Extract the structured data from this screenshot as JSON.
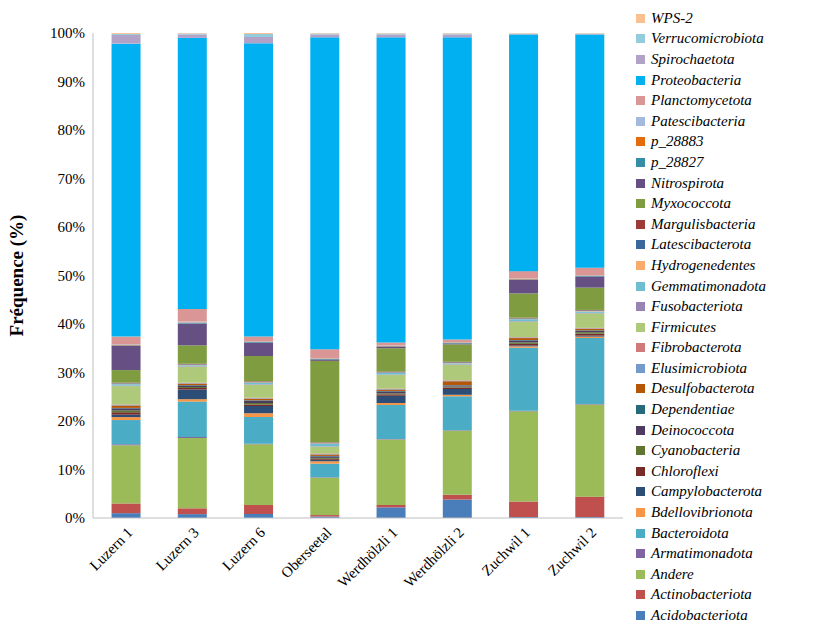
{
  "chart_data": {
    "type": "bar",
    "stacked": true,
    "grid": false,
    "legend": "right",
    "y_label": "Fréquence   (%)",
    "categories": [
      "Luzern 1",
      "Luzern 3",
      "Luzern 6",
      "Oberseetal",
      "Werdhölzli 1",
      "Werdhölzli 2",
      "Zuchwil 1",
      "Zuchwil 2"
    ],
    "ylim": [
      0,
      100
    ],
    "yticks": [
      {
        "value": 0,
        "label": "0%"
      },
      {
        "value": 10,
        "label": "10%"
      },
      {
        "value": 20,
        "label": "20%"
      },
      {
        "value": 30,
        "label": "30%"
      },
      {
        "value": 40,
        "label": "40%"
      },
      {
        "value": 50,
        "label": "50%"
      },
      {
        "value": 60,
        "label": "60%"
      },
      {
        "value": 70,
        "label": "70%"
      },
      {
        "value": 80,
        "label": "80%"
      },
      {
        "value": 90,
        "label": "90%"
      },
      {
        "value": 100,
        "label": "100%"
      }
    ],
    "series": [
      {
        "name": "Acidobacteriota",
        "color": "#4a7ebb",
        "values": [
          1.0,
          0.8,
          0.8,
          0.3,
          2.2,
          3.8,
          0.2,
          0.2
        ]
      },
      {
        "name": "Actinobacteriota",
        "color": "#c0504d",
        "values": [
          2.0,
          1.2,
          1.9,
          0.3,
          0.5,
          1.0,
          3.2,
          4.2
        ]
      },
      {
        "name": "Andere",
        "color": "#9bbb59",
        "values": [
          12.0,
          14.5,
          12.5,
          7.7,
          13.5,
          13.2,
          18.6,
          19.0
        ]
      },
      {
        "name": "Armatimonadota",
        "color": "#8064a2",
        "values": [
          0.2,
          0.2,
          0.1,
          0.1,
          0.1,
          0.1,
          0.1,
          0.1
        ]
      },
      {
        "name": "Bacteroidota",
        "color": "#4bacc6",
        "values": [
          5.0,
          7.3,
          5.5,
          2.8,
          7.0,
          7.0,
          13.0,
          13.6
        ]
      },
      {
        "name": "Bdellovibrionota",
        "color": "#f79646",
        "values": [
          0.6,
          0.5,
          0.8,
          0.5,
          0.4,
          0.3,
          0.3,
          0.3
        ]
      },
      {
        "name": "Campylobacterota",
        "color": "#2c4d75",
        "values": [
          0.5,
          2.0,
          1.5,
          0.3,
          1.5,
          1.2,
          0.2,
          0.2
        ]
      },
      {
        "name": "Chloroflexi",
        "color": "#772c2a",
        "values": [
          0.5,
          0.3,
          0.3,
          0.2,
          0.3,
          0.3,
          0.3,
          0.4
        ]
      },
      {
        "name": "Cyanobacteria",
        "color": "#5f7530",
        "values": [
          0.4,
          0.2,
          0.3,
          0.2,
          0.2,
          0.2,
          0.3,
          0.3
        ]
      },
      {
        "name": "Deinococcota",
        "color": "#4d3b62",
        "values": [
          0.4,
          0.3,
          0.5,
          0.3,
          0.4,
          0.2,
          0.4,
          0.3
        ]
      },
      {
        "name": "Dependentiae",
        "color": "#276a7c",
        "values": [
          0.1,
          0.1,
          0.1,
          0.1,
          0.1,
          0.1,
          0.1,
          0.1
        ]
      },
      {
        "name": "Desulfobacterota",
        "color": "#b65708",
        "values": [
          0.5,
          0.3,
          0.3,
          0.3,
          0.3,
          0.8,
          0.4,
          0.3
        ]
      },
      {
        "name": "Elusimicrobiota",
        "color": "#729aca",
        "values": [
          0.1,
          0.1,
          0.1,
          0.1,
          0.1,
          0.1,
          0.1,
          0.1
        ]
      },
      {
        "name": "Fibrobacterota",
        "color": "#d07b79",
        "values": [
          0.1,
          0.1,
          0.1,
          0.1,
          0.1,
          0.1,
          0.1,
          0.1
        ]
      },
      {
        "name": "Firmicutes",
        "color": "#afc97a",
        "values": [
          3.8,
          3.3,
          2.7,
          1.4,
          2.8,
          3.2,
          3.2,
          3.0
        ]
      },
      {
        "name": "Fusobacteriota",
        "color": "#9983b5",
        "values": [
          0.1,
          0.1,
          0.1,
          0.1,
          0.1,
          0.1,
          0.1,
          0.1
        ]
      },
      {
        "name": "Gemmatimonadota",
        "color": "#6fbdd1",
        "values": [
          0.3,
          0.2,
          0.3,
          0.5,
          0.3,
          0.2,
          0.4,
          0.3
        ]
      },
      {
        "name": "Hydrogenedentes",
        "color": "#f9ab6b",
        "values": [
          0.1,
          0.1,
          0.1,
          0.1,
          0.1,
          0.1,
          0.1,
          0.1
        ]
      },
      {
        "name": "Latescibacterota",
        "color": "#3a679c",
        "values": [
          0.1,
          0.1,
          0.1,
          0.1,
          0.1,
          0.1,
          0.1,
          0.1
        ]
      },
      {
        "name": "Margulisbacteria",
        "color": "#9c3b38",
        "values": [
          0.1,
          0.1,
          0.1,
          0.1,
          0.1,
          0.1,
          0.1,
          0.1
        ]
      },
      {
        "name": "Myxococcota",
        "color": "#7f9c41",
        "values": [
          2.6,
          3.8,
          5.2,
          16.8,
          4.8,
          3.6,
          5.0,
          4.6
        ]
      },
      {
        "name": "Nitrospirota",
        "color": "#664f83",
        "values": [
          5.0,
          4.5,
          2.8,
          0.3,
          0.3,
          0.2,
          2.8,
          2.3
        ]
      },
      {
        "name": "p_28827",
        "color": "#358da6",
        "values": [
          0.1,
          0.1,
          0.1,
          0.1,
          0.1,
          0.1,
          0.1,
          0.1
        ]
      },
      {
        "name": "p_28883",
        "color": "#e46c0a",
        "values": [
          0.1,
          0.1,
          0.1,
          0.1,
          0.1,
          0.1,
          0.1,
          0.1
        ]
      },
      {
        "name": "Patescibacteria",
        "color": "#a5b9dc",
        "values": [
          0.1,
          0.2,
          0.1,
          0.1,
          0.1,
          0.1,
          0.1,
          0.1
        ]
      },
      {
        "name": "Planctomycetota",
        "color": "#d99694",
        "values": [
          1.6,
          2.6,
          0.9,
          1.8,
          0.6,
          0.5,
          1.5,
          1.5
        ]
      },
      {
        "name": "Proteobacteria",
        "color": "#00b0f0",
        "values": [
          60.4,
          55.9,
          60.5,
          64.3,
          62.9,
          62.3,
          48.8,
          48.1
        ]
      },
      {
        "name": "Spirochaetota",
        "color": "#b3a2c7",
        "values": [
          1.8,
          0.7,
          1.3,
          0.6,
          0.6,
          0.6,
          0.1,
          0.1
        ]
      },
      {
        "name": "Verrucomicrobiota",
        "color": "#93cddd",
        "values": [
          0.2,
          0.2,
          0.6,
          0.2,
          0.2,
          0.2,
          0.1,
          0.1
        ]
      },
      {
        "name": "WPS-2",
        "color": "#fac090",
        "values": [
          0.2,
          0.1,
          0.2,
          0.1,
          0.1,
          0.1,
          0.1,
          0.1
        ]
      }
    ]
  }
}
